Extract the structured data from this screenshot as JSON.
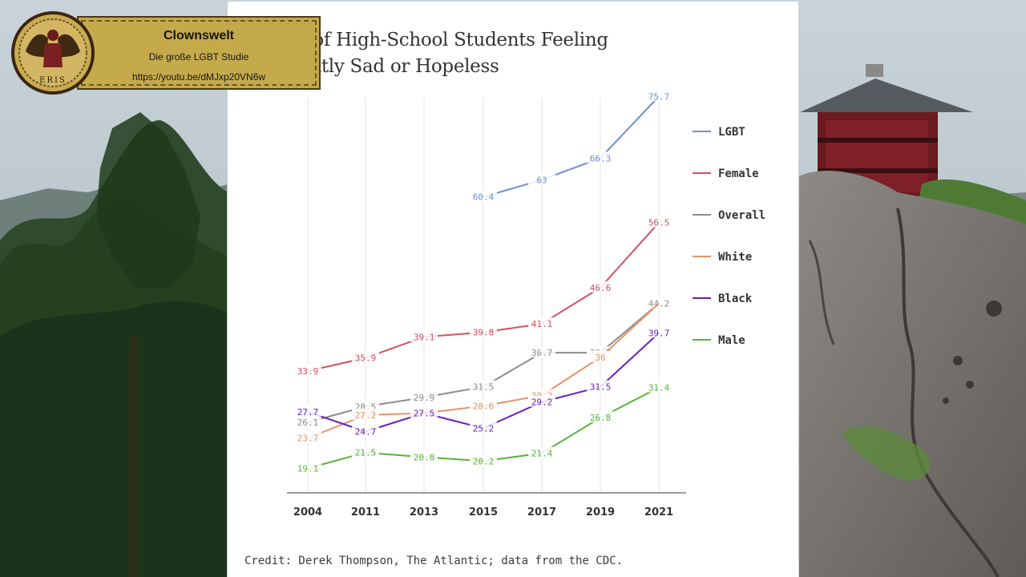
{
  "banner": {
    "name": "Clownswelt",
    "subtitle": "Die große LGBT Studie",
    "url": "https://youtu.be/dMJxp20VN6w",
    "logo_text": "ERIS"
  },
  "colors": {
    "LGBT": "#6a8fd8",
    "Female": "#d45060",
    "Overall": "#8c8c8c",
    "White": "#e8926a",
    "Black": "#6a1fc0",
    "Male": "#58b43a"
  },
  "chart_data": {
    "type": "line",
    "title": "cent of High-School Students Feeling\nsistently Sad or Hopeless",
    "credit": "Credit: Derek Thompson, The Atlantic; data from the CDC.",
    "categories": [
      "2004",
      "2011",
      "2013",
      "2015",
      "2017",
      "2019",
      "2021"
    ],
    "ylim": [
      10,
      80
    ],
    "grid": "vertical",
    "legend": "right",
    "series": [
      {
        "name": "LGBT",
        "values": [
          null,
          null,
          null,
          60.4,
          63,
          66.3,
          75.7
        ],
        "labels": [
          "",
          "",
          "",
          "60.4",
          "63",
          "66.3",
          "75.7"
        ]
      },
      {
        "name": "Female",
        "values": [
          33.9,
          35.9,
          39.1,
          39.8,
          41.1,
          46.6,
          56.5
        ],
        "labels": [
          "33.9",
          "35.9",
          "39.1",
          "39.8",
          "41.1",
          "46.6",
          "56.5"
        ]
      },
      {
        "name": "Overall",
        "values": [
          26.1,
          28.5,
          29.9,
          31.5,
          36.7,
          36.7,
          44.2
        ],
        "labels": [
          "26.1",
          "28.5",
          "29.9",
          "31.5",
          "36.7",
          "36.7",
          "44.2"
        ]
      },
      {
        "name": "White",
        "values": [
          23.7,
          27.2,
          27.5,
          28.6,
          30.2,
          36,
          44.2
        ],
        "labels": [
          "23.7",
          "27.2",
          "",
          "28.6",
          "30.2",
          "36",
          ""
        ]
      },
      {
        "name": "Black",
        "values": [
          27.7,
          24.7,
          27.5,
          25.2,
          29.2,
          31.5,
          39.7
        ],
        "labels": [
          "27.7",
          "24.7",
          "27.5",
          "25.2",
          "29.2",
          "31.5",
          "39.7"
        ]
      },
      {
        "name": "Male",
        "values": [
          19.1,
          21.5,
          20.8,
          20.2,
          21.4,
          26.8,
          31.4
        ],
        "labels": [
          "19.1",
          "21.5",
          "20.8",
          "20.2",
          "21.4",
          "26.8",
          "31.4"
        ]
      }
    ]
  }
}
